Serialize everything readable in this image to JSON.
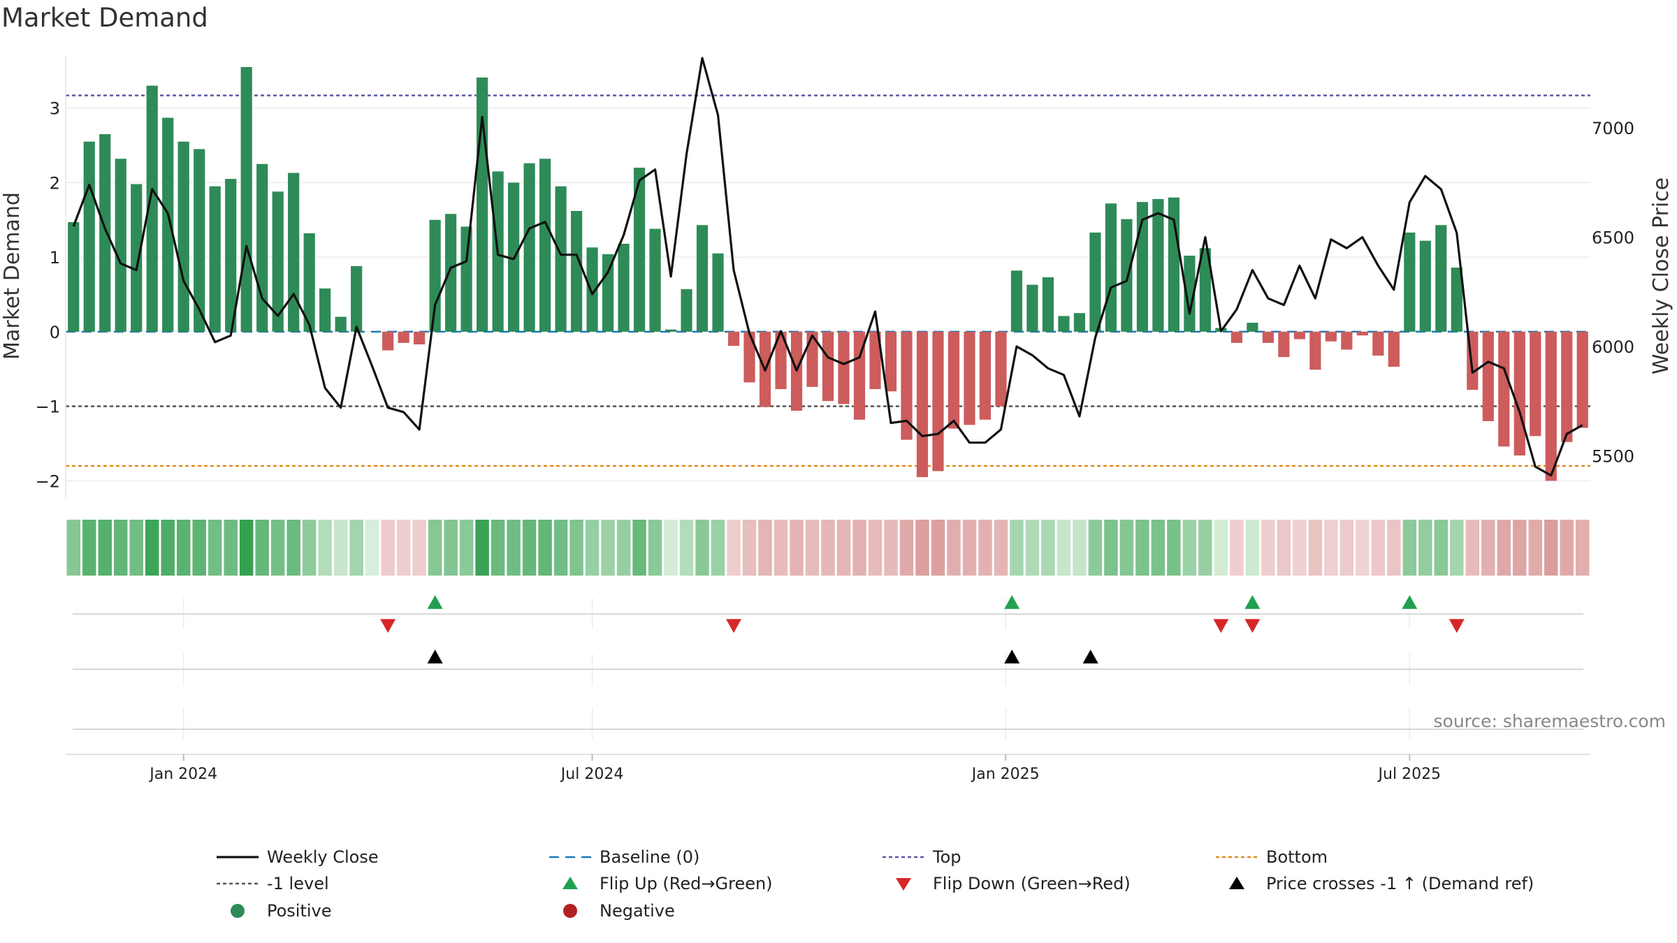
{
  "chart_data": {
    "type": "bar",
    "title": "Market Demand",
    "ylabel_left": "Market Demand",
    "ylabel_right": "Weekly Close Price",
    "source": "source: sharemaestro.com",
    "left_axis": {
      "ylim": [
        -2.25,
        3.7
      ],
      "ticks": [
        3,
        2,
        1,
        0,
        -1,
        -2
      ],
      "tick_labels": [
        "3",
        "2",
        "1",
        "0",
        "−1",
        "−2"
      ]
    },
    "right_axis": {
      "ylim": [
        5300,
        7330
      ],
      "ticks": [
        7000,
        6500,
        6000,
        5500
      ],
      "tick_labels": [
        "7000",
        "6500",
        "6000",
        "5500"
      ]
    },
    "x_axis": {
      "n_weeks": 97,
      "tick_weeks": [
        7,
        33,
        59.3,
        85
      ],
      "tick_labels": [
        "Jan 2024",
        "Jul 2024",
        "Jan 2025",
        "Jul 2025"
      ]
    },
    "reference_lines": {
      "top": 3.17,
      "minus_one": -1,
      "bottom": -1.8,
      "baseline": 0
    },
    "demand": [
      1.47,
      2.55,
      2.65,
      2.32,
      1.98,
      3.3,
      2.87,
      2.55,
      2.45,
      1.95,
      2.05,
      3.55,
      2.25,
      1.88,
      2.13,
      1.32,
      0.58,
      0.2,
      0.88,
      0.0,
      -0.25,
      -0.15,
      -0.17,
      1.5,
      1.58,
      1.41,
      3.41,
      2.15,
      2.0,
      2.26,
      2.32,
      1.95,
      1.62,
      1.13,
      1.04,
      1.18,
      2.2,
      1.38,
      0.03,
      0.57,
      1.43,
      1.05,
      -0.19,
      -0.68,
      -1.01,
      -0.77,
      -1.06,
      -0.74,
      -0.93,
      -0.97,
      -1.18,
      -0.77,
      -0.8,
      -1.45,
      -1.95,
      -1.87,
      -1.3,
      -1.25,
      -1.18,
      -1.0,
      0.82,
      0.63,
      0.73,
      0.21,
      0.25,
      1.33,
      1.72,
      1.51,
      1.74,
      1.78,
      1.8,
      1.02,
      1.12,
      0.05,
      -0.15,
      0.12,
      -0.15,
      -0.34,
      -0.1,
      -0.51,
      -0.13,
      -0.24,
      -0.05,
      -0.32,
      -0.47,
      1.33,
      1.22,
      1.43,
      0.86,
      -0.78,
      -1.2,
      -1.54,
      -1.66,
      -1.4,
      -2.0,
      -1.48,
      -1.29
    ],
    "close": [
      6550,
      6740,
      6540,
      6380,
      6350,
      6720,
      6610,
      6300,
      6170,
      6020,
      6050,
      6460,
      6220,
      6140,
      6240,
      6100,
      5810,
      5720,
      6090,
      5910,
      5720,
      5700,
      5620,
      6190,
      6360,
      6390,
      7050,
      6420,
      6400,
      6540,
      6570,
      6420,
      6420,
      6240,
      6340,
      6510,
      6760,
      6810,
      6320,
      6880,
      7320,
      7060,
      6350,
      6060,
      5890,
      6070,
      5890,
      6050,
      5950,
      5920,
      5950,
      6160,
      5650,
      5660,
      5590,
      5600,
      5660,
      5560,
      5560,
      5620,
      6000,
      5960,
      5900,
      5870,
      5680,
      6040,
      6270,
      6300,
      6580,
      6610,
      6580,
      6150,
      6500,
      6070,
      6170,
      6350,
      6220,
      6190,
      6370,
      6220,
      6490,
      6450,
      6500,
      6370,
      6260,
      6660,
      6780,
      6720,
      6520,
      5880,
      5930,
      5900,
      5700,
      5450,
      5410,
      5600,
      5640
    ],
    "flip_up_weeks": [
      23,
      59.7,
      75,
      85
    ],
    "flip_down_weeks": [
      20,
      42,
      73,
      75,
      88
    ],
    "price_cross_weeks": [
      23,
      59.7,
      64.7
    ],
    "legend": [
      {
        "label": "Weekly Close",
        "marker": "line-solid",
        "color": "#111111"
      },
      {
        "label": "Baseline (0)",
        "marker": "line-dashed",
        "color": "#1f77b4"
      },
      {
        "label": "Top",
        "marker": "line-dotted",
        "color": "#5a5aa8"
      },
      {
        "label": "Bottom",
        "marker": "line-dotted",
        "color": "#e08a1e"
      },
      {
        "label": "-1 level",
        "marker": "line-dotted",
        "color": "#555555"
      },
      {
        "label": "Flip Up (Red→Green)",
        "marker": "triangle-up",
        "color": "#22a050"
      },
      {
        "label": "Flip Down (Green→Red)",
        "marker": "triangle-down",
        "color": "#d62728"
      },
      {
        "label": "Price crosses -1 ↑ (Demand ref)",
        "marker": "triangle-up",
        "color": "#000000"
      },
      {
        "label": "Positive",
        "marker": "circle",
        "color": "#2e8b57"
      },
      {
        "label": "Negative",
        "marker": "circle",
        "color": "#b22222"
      }
    ]
  },
  "colors": {
    "positive_bar": "#2e8b57",
    "negative_bar": "#cd5c5c",
    "close_line": "#111111",
    "baseline": "#1f77b4",
    "top_line": "#5a5aa8",
    "bottom_line": "#e08a1e",
    "minus_one_line": "#555555",
    "flip_up": "#22a050",
    "flip_down": "#d62728",
    "price_cross": "#000000"
  }
}
